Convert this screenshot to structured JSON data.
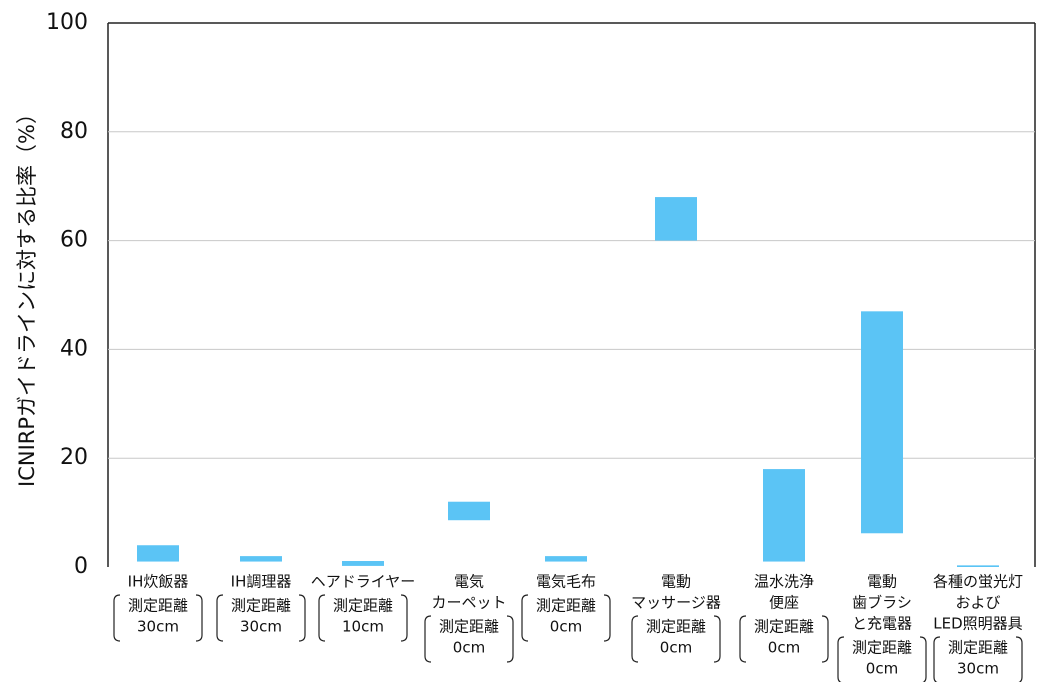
{
  "chart_data": {
    "type": "floating-bar",
    "y_label": "ICNIRPガイドラインに対する比率（%）",
    "categories": [
      [
        "IH炊飯器"
      ],
      [
        "IH調理器"
      ],
      [
        "ヘアドライヤー"
      ],
      [
        "電気",
        "カーペット"
      ],
      [
        "電気毛布"
      ],
      [
        "電動",
        "マッサージ器"
      ],
      [
        "温水洗浄",
        "便座"
      ],
      [
        "電動",
        "歯ブラシ",
        "と充電器"
      ],
      [
        "各種の蛍光灯",
        "および",
        "LED照明器具"
      ]
    ],
    "distances": [
      [
        "測定距離",
        "30cm"
      ],
      [
        "測定距離",
        "30cm"
      ],
      [
        "測定距離",
        "10cm"
      ],
      [
        "測定距離",
        "0cm"
      ],
      [
        "測定距離",
        "0cm"
      ],
      [
        "測定距離",
        "0cm"
      ],
      [
        "測定距離",
        "0cm"
      ],
      [
        "測定距離",
        "0cm"
      ],
      [
        "測定距離",
        "30cm"
      ]
    ],
    "low": [
      1,
      1,
      0.2,
      8.6,
      1,
      60,
      1,
      6.2,
      0
    ],
    "high": [
      4,
      2,
      1.1,
      12,
      2,
      68,
      18,
      47,
      0.3
    ],
    "color": "#5bc4f5",
    "ylim": [
      0,
      100
    ],
    "yticks": [
      0,
      20,
      40,
      60,
      80,
      100
    ],
    "grid": true
  }
}
